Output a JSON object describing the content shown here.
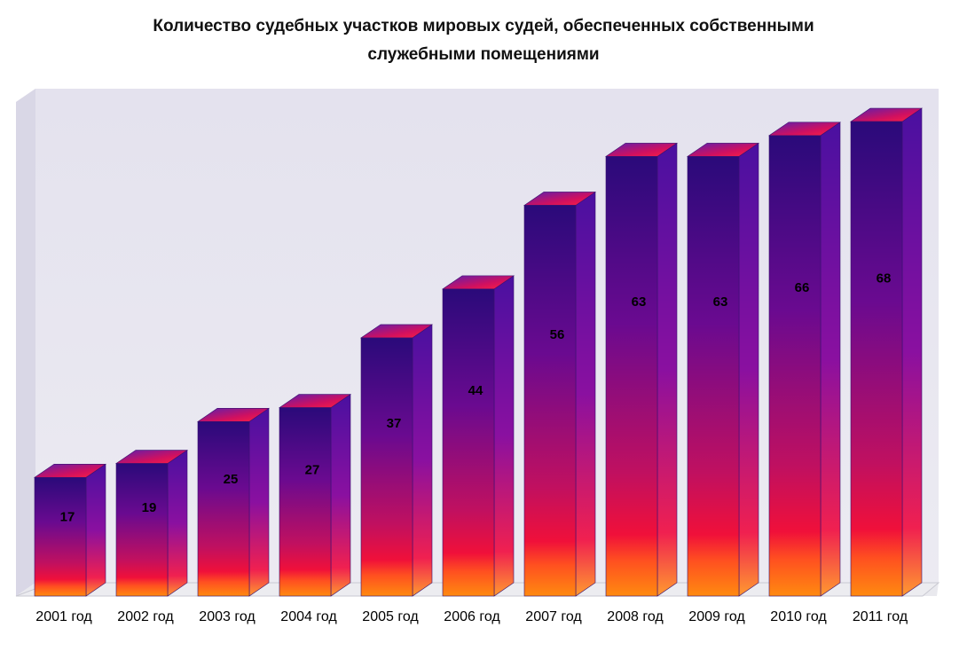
{
  "chart_data": {
    "type": "bar",
    "title_line1": "Количество судебных участков мировых судей, обеспеченных собственными",
    "title_line2": "служебными помещениями",
    "categories": [
      "2001 год",
      "2002 год",
      "2003 год",
      "2004 год",
      "2005 год",
      "2006 год",
      "2007 год",
      "2008 год",
      "2009 год",
      "2010 год",
      "2011 год"
    ],
    "values": [
      17,
      19,
      25,
      27,
      37,
      44,
      56,
      63,
      63,
      66,
      68
    ],
    "xlabel": "",
    "ylabel": "",
    "ylim": [
      0,
      75
    ],
    "grid": false,
    "legend": "none",
    "style": "3d-column",
    "colors": {
      "bar_top": "#2a0a7a",
      "bar_mid": "#8a0a8a",
      "bar_low": "#f0103a",
      "bar_base": "#ff7a10",
      "backwall": "#e6e4ef",
      "floor": "#e9e9ee"
    }
  }
}
